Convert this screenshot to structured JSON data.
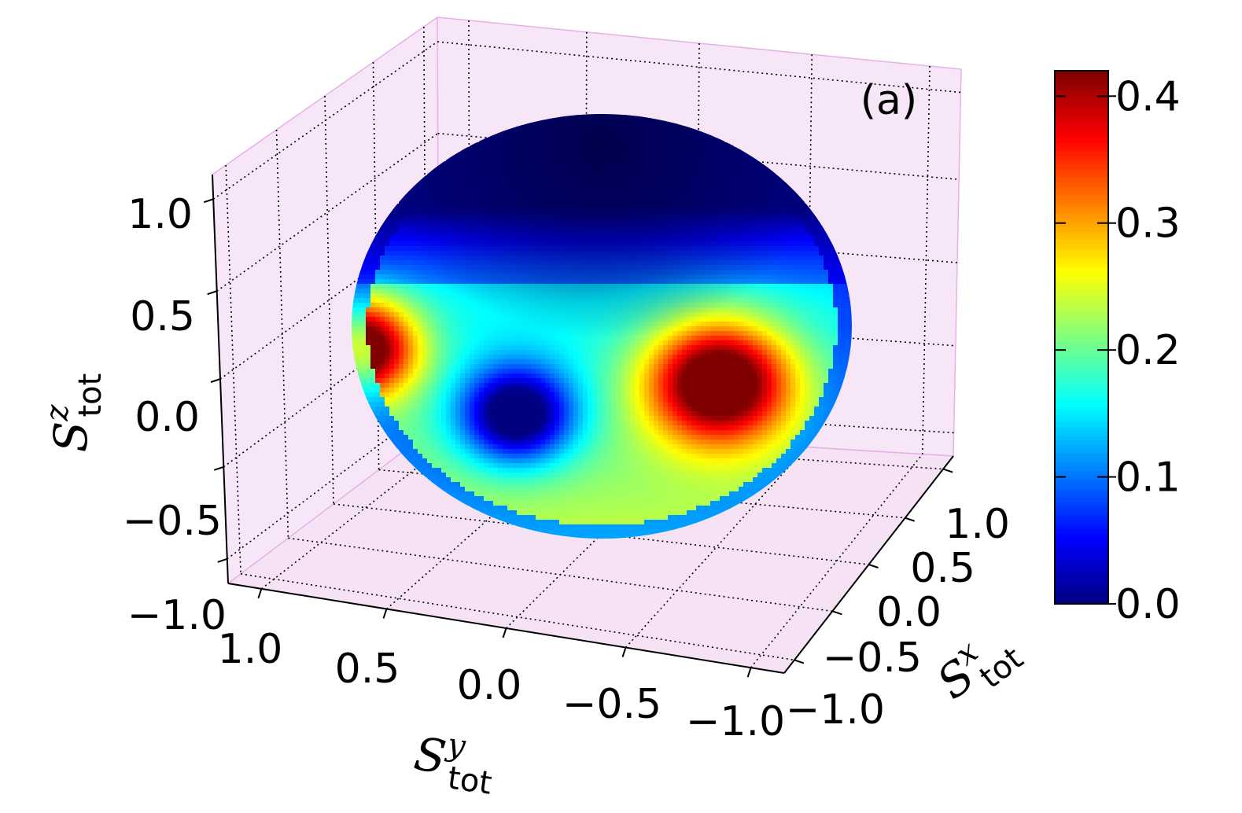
{
  "chart_data": {
    "type": "surface3d",
    "panel_label": "(a)",
    "axes": {
      "x": {
        "label_main": "S",
        "label_sup": "x",
        "label_sub": "tot",
        "ticks": [
          "−1.0",
          "−0.5",
          "0.0",
          "0.5",
          "1.0"
        ],
        "range": [
          -1.0,
          1.0
        ]
      },
      "y": {
        "label_main": "S",
        "label_sup": "y",
        "label_sub": "tot",
        "ticks": [
          "1.0",
          "0.5",
          "0.0",
          "−0.5",
          "−1.0"
        ],
        "range": [
          -1.0,
          1.0
        ]
      },
      "z": {
        "label_main": "S",
        "label_sup": "z",
        "label_sub": "tot",
        "ticks": [
          "−1.0",
          "−0.5",
          "0.0",
          "0.5",
          "1.0"
        ],
        "range": [
          -1.0,
          1.0
        ]
      }
    },
    "colorbar": {
      "ticks": [
        "0.0",
        "0.1",
        "0.2",
        "0.3",
        "0.4"
      ],
      "range": [
        0.0,
        0.42
      ],
      "colormap": "jet"
    },
    "surface": {
      "shape": "sphere",
      "color_hotspots": [
        {
          "description_value": 0.42,
          "region": "front-right equator"
        },
        {
          "description_value": 0.42,
          "region": "left limb equator"
        },
        {
          "description_value": 0.0,
          "region": "front-center equator"
        },
        {
          "description_value": 0.0,
          "region": "north pole"
        }
      ]
    },
    "pane_color": "#f7e6f7",
    "grid": true
  }
}
